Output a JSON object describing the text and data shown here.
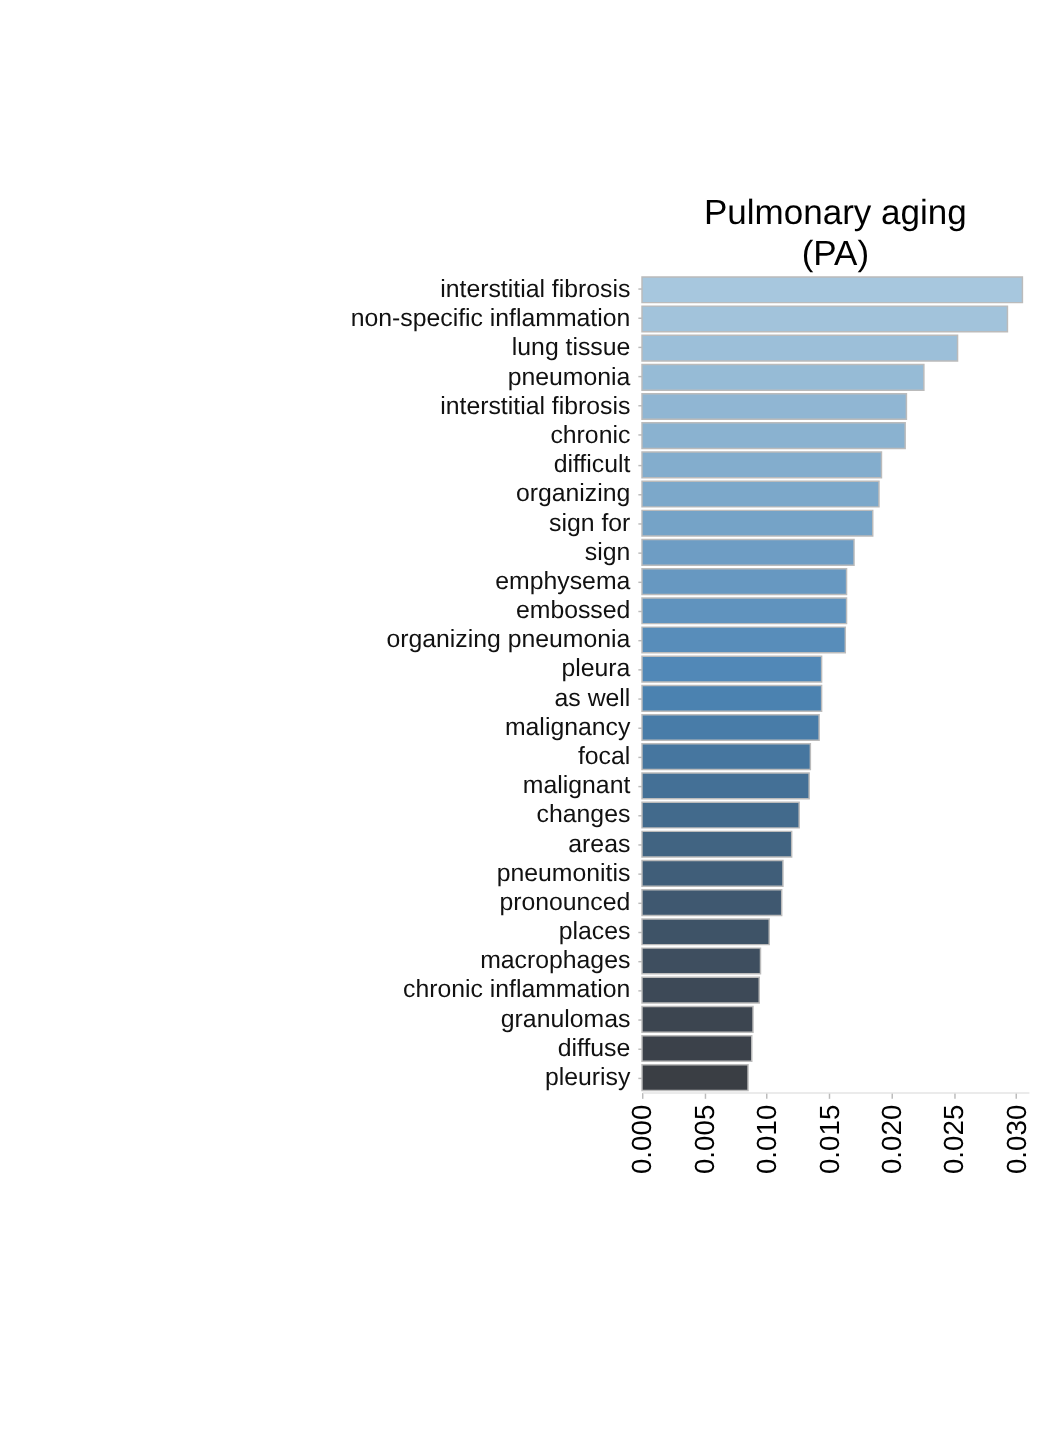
{
  "chart_data": {
    "type": "bar",
    "orientation": "horizontal",
    "title": "Pulmonary aging\n(PA)",
    "categories": [
      "interstitial fibrosis",
      "non-specific inflammation",
      "lung tissue",
      "pneumonia",
      "interstitial fibrosis",
      "chronic",
      "difficult",
      "organizing",
      "sign for",
      "sign",
      "emphysema",
      "embossed",
      "organizing pneumonia",
      "pleura",
      "as well",
      "malignancy",
      "focal",
      "malignant",
      "changes",
      "areas",
      "pneumonitis",
      "pronounced",
      "places",
      "macrophages",
      "chronic inflammation",
      "granulomas",
      "diffuse",
      "pleurisy"
    ],
    "values": [
      0.0305,
      0.0293,
      0.0253,
      0.0226,
      0.0212,
      0.0211,
      0.0192,
      0.019,
      0.0185,
      0.017,
      0.0164,
      0.0164,
      0.0163,
      0.0144,
      0.0144,
      0.0142,
      0.0135,
      0.0134,
      0.0126,
      0.012,
      0.0113,
      0.0112,
      0.0102,
      0.0095,
      0.0094,
      0.0089,
      0.0088,
      0.0085
    ],
    "colors": [
      "#a7c7de",
      "#a2c3db",
      "#9cbfd9",
      "#96bbd6",
      "#90b6d3",
      "#8ab2d0",
      "#83adcd",
      "#7ca8ca",
      "#75a3c7",
      "#6e9dc4",
      "#6798c1",
      "#6093be",
      "#588dba",
      "#5188b7",
      "#4b82b0",
      "#487ca8",
      "#46769f",
      "#447096",
      "#426a8c",
      "#416482",
      "#405e79",
      "#3f5870",
      "#3e5367",
      "#3e4e5f",
      "#3d4957",
      "#3c4550",
      "#3b414a",
      "#3a3e44"
    ],
    "xlim": [
      0,
      0.031
    ],
    "xticks": [
      {
        "value": 0,
        "label": "0.000"
      },
      0.005,
      {
        "value": 0.01,
        "label": "0.010"
      },
      0.015,
      {
        "value": 0.02,
        "label": "0.020"
      },
      0.025,
      {
        "value": 0.03,
        "label": "0.030"
      }
    ],
    "grid": false
  }
}
